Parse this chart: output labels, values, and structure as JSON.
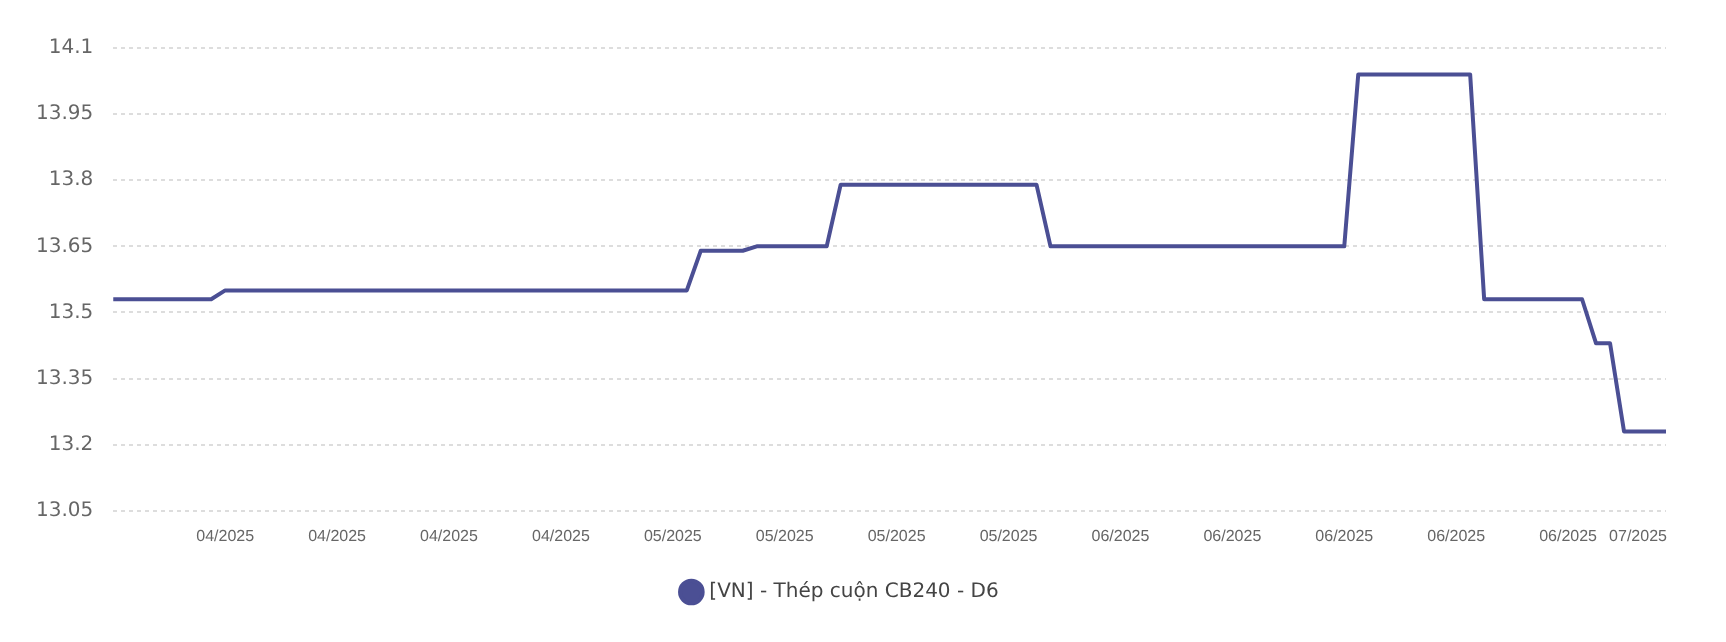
{
  "chart_data": {
    "type": "line",
    "categories": [
      null,
      null,
      null,
      null,
      null,
      null,
      null,
      null,
      "04/2025",
      null,
      null,
      null,
      null,
      null,
      null,
      null,
      "04/2025",
      null,
      null,
      null,
      null,
      null,
      null,
      null,
      "04/2025",
      null,
      null,
      null,
      null,
      null,
      null,
      null,
      "04/2025",
      null,
      null,
      null,
      null,
      null,
      null,
      null,
      "05/2025",
      null,
      null,
      null,
      null,
      null,
      null,
      null,
      "05/2025",
      null,
      null,
      null,
      null,
      null,
      null,
      null,
      "05/2025",
      null,
      null,
      null,
      null,
      null,
      null,
      null,
      "05/2025",
      null,
      null,
      null,
      null,
      null,
      null,
      null,
      "06/2025",
      null,
      null,
      null,
      null,
      null,
      null,
      null,
      "06/2025",
      null,
      null,
      null,
      null,
      null,
      null,
      null,
      "06/2025",
      null,
      null,
      null,
      null,
      null,
      null,
      null,
      "06/2025",
      null,
      null,
      null,
      null,
      null,
      null,
      null,
      "06/2025",
      null,
      null,
      null,
      null,
      "07/2025",
      null,
      null
    ],
    "series": [
      {
        "name": "[VN] - Thép cuộn CB240 - D6",
        "color": "#4b4f94",
        "values": [
          13.53,
          13.53,
          13.53,
          13.53,
          13.53,
          13.53,
          13.53,
          13.53,
          13.55,
          13.55,
          13.55,
          13.55,
          13.55,
          13.55,
          13.55,
          13.55,
          13.55,
          13.55,
          13.55,
          13.55,
          13.55,
          13.55,
          13.55,
          13.55,
          13.55,
          13.55,
          13.55,
          13.55,
          13.55,
          13.55,
          13.55,
          13.55,
          13.55,
          13.55,
          13.55,
          13.55,
          13.55,
          13.55,
          13.55,
          13.55,
          13.55,
          13.55,
          13.64,
          13.64,
          13.64,
          13.64,
          13.65,
          13.65,
          13.65,
          13.65,
          13.65,
          13.65,
          13.79,
          13.79,
          13.79,
          13.79,
          13.79,
          13.79,
          13.79,
          13.79,
          13.79,
          13.79,
          13.79,
          13.79,
          13.79,
          13.79,
          13.79,
          13.65,
          13.65,
          13.65,
          13.65,
          13.65,
          13.65,
          13.65,
          13.65,
          13.65,
          13.65,
          13.65,
          13.65,
          13.65,
          13.65,
          13.65,
          13.65,
          13.65,
          13.65,
          13.65,
          13.65,
          13.65,
          13.65,
          14.04,
          14.04,
          14.04,
          14.04,
          14.04,
          14.04,
          14.04,
          14.04,
          14.04,
          13.53,
          13.53,
          13.53,
          13.53,
          13.53,
          13.53,
          13.53,
          13.53,
          13.43,
          13.43,
          13.23,
          13.23,
          13.23,
          13.23
        ]
      }
    ],
    "ylim": [
      13.05,
      14.1
    ],
    "yticks": [
      13.05,
      13.2,
      13.35,
      13.5,
      13.65,
      13.8,
      13.95,
      14.1
    ],
    "grid": "y",
    "legend": "bottom",
    "marker": "none",
    "line_style": "solid"
  }
}
